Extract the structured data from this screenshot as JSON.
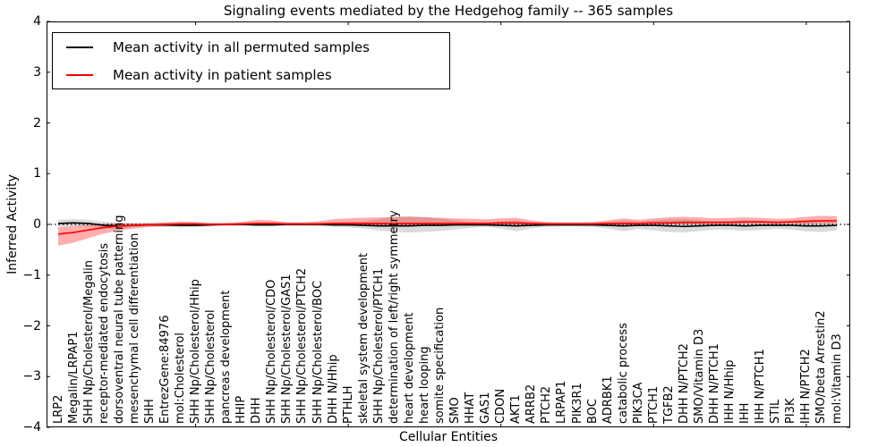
{
  "chart_data": {
    "type": "line",
    "title": "Signaling events mediated by the Hedgehog family -- 365 samples",
    "xlabel": "Cellular Entities",
    "ylabel": "Inferred Activity",
    "ylim": [
      -4,
      4
    ],
    "yticks": [
      4,
      3,
      2,
      1,
      0,
      -1,
      -2,
      -3,
      -4
    ],
    "ytick_labels": [
      "4",
      "3",
      "2",
      "1",
      "0",
      "−1",
      "−2",
      "−3",
      "−4"
    ],
    "x_major_tick_indices": [
      9,
      19,
      29,
      39,
      49
    ],
    "grid": false,
    "zero_line": {
      "style": "dotted",
      "color": "#000000",
      "y": 0
    },
    "legend_position": "upper left",
    "categories": [
      "LRP2",
      "Megalin/LRPAP1",
      "SHH Np/Cholesterol/Megalin",
      "receptor-mediated endocytosis",
      "dorsoventral neural tube patterning",
      "mesenchymal cell differentiation",
      "SHH",
      "EntrezGene:84976",
      "mol:Cholesterol",
      "SHH Np/Cholesterol/Hhip",
      "SHH Np/Cholesterol",
      "pancreas development",
      "HHIP",
      "DHH",
      "SHH Np/Cholesterol/CDO",
      "SHH Np/Cholesterol/GAS1",
      "SHH Np/Cholesterol/PTCH2",
      "SHH Np/Cholesterol/BOC",
      "DHH N/Hhip",
      "PTHLH",
      "skeletal system development",
      "SHH Np/Cholesterol/PTCH1",
      "determination of left/right symmetry",
      "heart development",
      "heart looping",
      "somite specification",
      "SMO",
      "HHAT",
      "GAS1",
      "CDON",
      "AKT1",
      "ARRB2",
      "PTCH2",
      "LRPAP1",
      "PIK3R1",
      "BOC",
      "ADRBK1",
      "catabolic process",
      "PIK3CA",
      "PTCH1",
      "TGFB2",
      "DHH N/PTCH2",
      "SMO/Vitamin D3",
      "DHH N/PTCH1",
      "IHH N/Hhip",
      "IHH",
      "IHH N/PTCH1",
      "STIL",
      "PI3K",
      "IHH N/PTCH2",
      "SMO/beta Arrestin2",
      "mol:Vitamin D3"
    ],
    "series": [
      {
        "name": "Mean activity in all permuted samples",
        "color": "#000000",
        "band_color": "rgba(0,0,0,0.14)",
        "values": [
          0.02,
          0.03,
          0.02,
          -0.02,
          -0.03,
          -0.02,
          -0.01,
          -0.01,
          -0.02,
          -0.02,
          -0.01,
          0,
          0,
          -0.01,
          -0.01,
          0,
          0,
          0,
          -0.01,
          -0.01,
          -0.02,
          -0.03,
          -0.03,
          -0.03,
          -0.02,
          -0.02,
          -0.01,
          -0.01,
          -0.01,
          -0.02,
          -0.03,
          -0.02,
          -0.01,
          -0.01,
          -0.01,
          -0.01,
          -0.02,
          -0.03,
          -0.02,
          -0.02,
          -0.03,
          -0.04,
          -0.03,
          -0.02,
          -0.02,
          -0.03,
          -0.02,
          -0.02,
          -0.02,
          -0.03,
          -0.03,
          -0.02
        ],
        "band_low": [
          -0.04,
          -0.03,
          -0.04,
          -0.08,
          -0.09,
          -0.06,
          -0.04,
          -0.05,
          -0.06,
          -0.06,
          -0.04,
          -0.03,
          -0.03,
          -0.04,
          -0.04,
          -0.03,
          -0.03,
          -0.04,
          -0.05,
          -0.06,
          -0.08,
          -0.12,
          -0.15,
          -0.16,
          -0.15,
          -0.13,
          -0.1,
          -0.07,
          -0.05,
          -0.08,
          -0.14,
          -0.08,
          -0.05,
          -0.04,
          -0.04,
          -0.05,
          -0.08,
          -0.14,
          -0.09,
          -0.12,
          -0.15,
          -0.16,
          -0.13,
          -0.1,
          -0.11,
          -0.13,
          -0.11,
          -0.09,
          -0.1,
          -0.14,
          -0.15,
          -0.12
        ],
        "band_high": [
          0.09,
          0.1,
          0.09,
          0.05,
          0.03,
          0.03,
          0.03,
          0.03,
          0.02,
          0.02,
          0.02,
          0.02,
          0.02,
          0.02,
          0.02,
          0.02,
          0.02,
          0.03,
          0.04,
          0.05,
          0.06,
          0.1,
          0.15,
          0.16,
          0.15,
          0.12,
          0.08,
          0.05,
          0.04,
          0.06,
          0.08,
          0.05,
          0.03,
          0.03,
          0.03,
          0.03,
          0.05,
          0.08,
          0.06,
          0.08,
          0.1,
          0.1,
          0.08,
          0.06,
          0.07,
          0.08,
          0.07,
          0.06,
          0.07,
          0.09,
          0.09,
          0.07
        ]
      },
      {
        "name": "Mean activity in patient samples",
        "color": "#ff0000",
        "band_color": "rgba(255,0,0,0.32)",
        "values": [
          -0.19,
          -0.16,
          -0.11,
          -0.06,
          -0.03,
          -0.02,
          -0.01,
          0,
          0.01,
          0.01,
          0,
          0,
          0.01,
          0.02,
          0.02,
          0.01,
          0.01,
          0.01,
          0.02,
          0.02,
          0.02,
          0.02,
          0.02,
          0.02,
          0.02,
          0.02,
          0.02,
          0.02,
          0.02,
          0.03,
          0.03,
          0.02,
          0.01,
          0.01,
          0.01,
          0.01,
          0.02,
          0.02,
          0.02,
          0.03,
          0.03,
          0.04,
          0.04,
          0.04,
          0.04,
          0.05,
          0.05,
          0.04,
          0.05,
          0.06,
          0.07,
          0.07
        ],
        "band_low": [
          -0.42,
          -0.36,
          -0.27,
          -0.18,
          -0.12,
          -0.08,
          -0.05,
          -0.04,
          -0.03,
          -0.03,
          -0.02,
          -0.02,
          -0.02,
          -0.02,
          -0.02,
          -0.02,
          -0.02,
          -0.02,
          -0.01,
          -0.01,
          -0.01,
          -0.02,
          -0.02,
          -0.02,
          -0.02,
          -0.02,
          -0.02,
          -0.02,
          -0.02,
          -0.01,
          -0.01,
          -0.02,
          -0.02,
          -0.02,
          -0.02,
          -0.02,
          -0.01,
          -0.01,
          -0.01,
          -0.01,
          0,
          0,
          0,
          0,
          0,
          0.01,
          0.01,
          0,
          0.01,
          0.01,
          0.02,
          0.02
        ],
        "band_high": [
          -0.05,
          -0.03,
          -0.01,
          0.01,
          0.02,
          0.02,
          0.02,
          0.04,
          0.06,
          0.05,
          0.03,
          0.03,
          0.05,
          0.09,
          0.08,
          0.04,
          0.04,
          0.06,
          0.1,
          0.12,
          0.13,
          0.14,
          0.15,
          0.15,
          0.14,
          0.13,
          0.12,
          0.11,
          0.1,
          0.12,
          0.13,
          0.08,
          0.05,
          0.04,
          0.04,
          0.05,
          0.08,
          0.12,
          0.09,
          0.12,
          0.14,
          0.15,
          0.14,
          0.12,
          0.13,
          0.14,
          0.13,
          0.11,
          0.12,
          0.15,
          0.17,
          0.16
        ]
      }
    ]
  }
}
